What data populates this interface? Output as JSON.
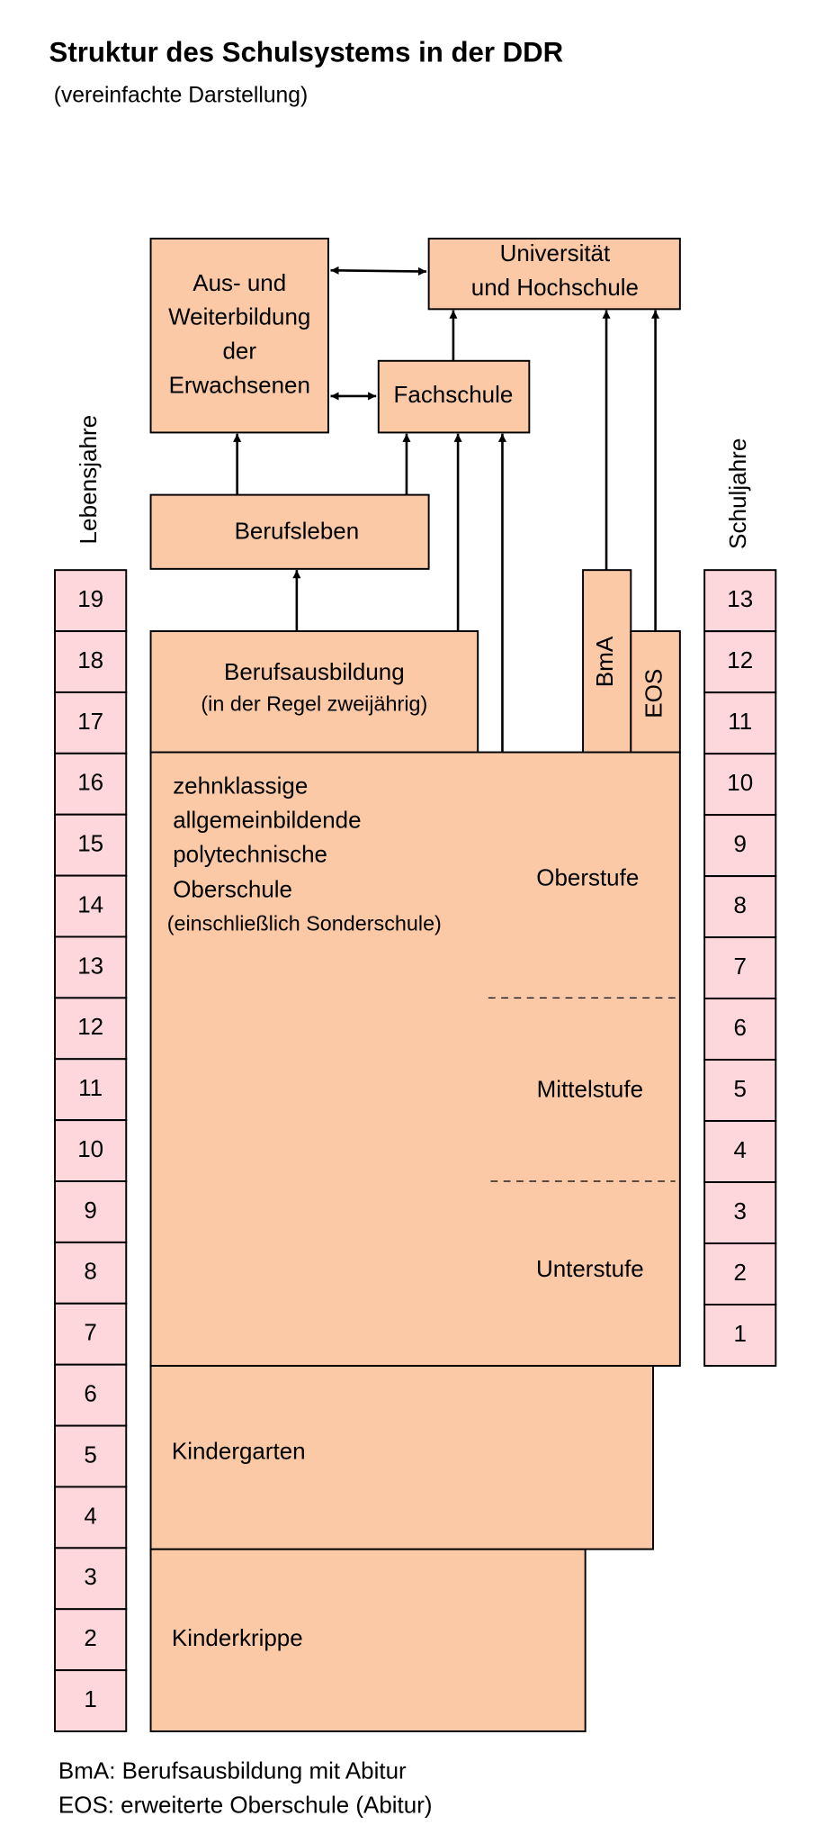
{
  "title": "Struktur des Schulsystems in der DDR",
  "subtitle": "(vereinfachte Darstellung)",
  "left_axis": {
    "label": "Lebensjahre",
    "values": [
      19,
      18,
      17,
      16,
      15,
      14,
      13,
      12,
      11,
      10,
      9,
      8,
      7,
      6,
      5,
      4,
      3,
      2,
      1
    ]
  },
  "right_axis": {
    "label": "Schuljahre",
    "values": [
      13,
      12,
      11,
      10,
      9,
      8,
      7,
      6,
      5,
      4,
      3,
      2,
      1
    ]
  },
  "nodes": {
    "weiterbildung": [
      "Aus- und",
      "Weiterbildung",
      "der",
      "Erwachsenen"
    ],
    "universitaet": [
      "Universität",
      "und Hochschule"
    ],
    "fachschule": "Fachschule",
    "berufsleben": "Berufsleben",
    "berufsausbildung": [
      "Berufsausbildung",
      "(in der Regel zweijährig)"
    ],
    "bma": "BmA",
    "eos": "EOS",
    "oberschule": [
      "zehnklassige",
      "allgemeinbildende",
      "polytechnische",
      "Oberschule",
      "(einschließlich Sonderschule)"
    ],
    "stufen": [
      "Oberstufe",
      "Mittelstufe",
      "Unterstufe"
    ],
    "kindergarten": "Kindergarten",
    "kinderkrippe": "Kinderkrippe"
  },
  "legend": [
    "BmA: Berufsausbildung mit Abitur",
    "EOS: erweiterte Oberschule (Abitur)"
  ]
}
